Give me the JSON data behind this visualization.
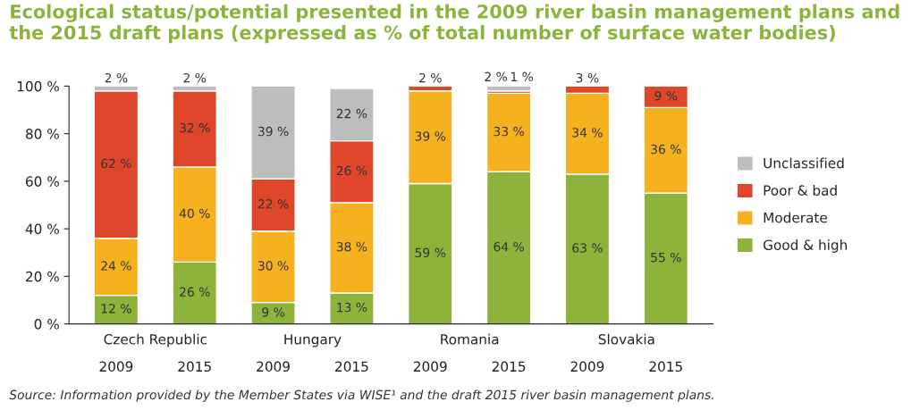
{
  "chart_data": {
    "type": "bar",
    "stacked": true,
    "title": "Ecological status/potential presented in the 2009 river basin management plans and the 2015 draft plans (expressed as % of total number of surface water bodies)",
    "categories": [
      "2009",
      "2015",
      "2009",
      "2015",
      "2009",
      "2015",
      "2009",
      "2015"
    ],
    "series": [
      {
        "name": "Good & high",
        "color": "#8db33a",
        "values": [
          12,
          26,
          9,
          13,
          59,
          64,
          63,
          55
        ],
        "value_labels": [
          "12 %",
          "26 %",
          "9 %",
          "13 %",
          "59 %",
          "64 %",
          "63 %",
          "55 %"
        ]
      },
      {
        "name": "Moderate",
        "color": "#f5b21e",
        "values": [
          24,
          40,
          30,
          38,
          39,
          33,
          34,
          36
        ],
        "value_labels": [
          "24 %",
          "40 %",
          "30 %",
          "38 %",
          "39 %",
          "33 %",
          "34 %",
          "36 %"
        ]
      },
      {
        "name": "Poor & bad",
        "color": "#e0462a",
        "values": [
          62,
          32,
          22,
          26,
          2,
          1,
          3,
          9
        ],
        "value_labels": [
          "62 %",
          "32 %",
          "22 %",
          "26 %",
          "2 %",
          "1 %",
          "3 %",
          "9 %"
        ]
      },
      {
        "name": "Unclassified",
        "color": "#bdbdbd",
        "values": [
          2,
          2,
          39,
          22,
          null,
          2,
          null,
          null
        ],
        "value_labels": [
          "2 %",
          "2 %",
          "39 %",
          "22 %",
          null,
          "2 %",
          null,
          null
        ]
      }
    ],
    "ylim": [
      0,
      100
    ],
    "yticks": [
      {
        "value": 0,
        "label": "0 %"
      },
      {
        "value": 20,
        "label": "20 %"
      },
      {
        "value": 40,
        "label": "40 %"
      },
      {
        "value": 60,
        "label": "60 %"
      },
      {
        "value": 80,
        "label": "80 %"
      },
      {
        "value": 100,
        "label": "100 %"
      }
    ],
    "legend": "right",
    "annotations": [
      "Czech Republic",
      "Hungary",
      "Romania",
      "Slovakia",
      "Source: Information provided by the Member States via WISE¹ and the draft 2015 river basin management plans."
    ]
  }
}
